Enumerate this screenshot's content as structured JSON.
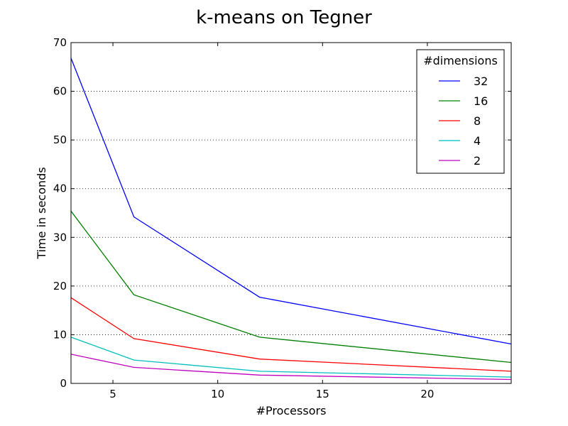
{
  "chart_data": {
    "type": "line",
    "title": "k-means on Tegner",
    "xlabel": "#Processors",
    "ylabel": "Time in seconds",
    "xlim": [
      3,
      24
    ],
    "ylim": [
      0,
      70
    ],
    "xticks": [
      5,
      10,
      15,
      20
    ],
    "yticks": [
      0,
      10,
      20,
      30,
      40,
      50,
      60,
      70
    ],
    "grid": "y-dotted",
    "x": [
      3,
      6,
      12,
      24
    ],
    "legend": {
      "title": "#dimensions",
      "position": "top-right"
    },
    "series": [
      {
        "name": "32",
        "color": "#0000ff",
        "values": [
          66.8,
          34.2,
          17.7,
          8.1
        ]
      },
      {
        "name": "16",
        "color": "#008000",
        "values": [
          35.4,
          18.2,
          9.5,
          4.3
        ]
      },
      {
        "name": "8",
        "color": "#ff0000",
        "values": [
          17.6,
          9.2,
          5.0,
          2.5
        ]
      },
      {
        "name": "4",
        "color": "#00bfbf",
        "values": [
          9.5,
          4.8,
          2.5,
          1.3
        ]
      },
      {
        "name": "2",
        "color": "#bf00bf",
        "values": [
          6.0,
          3.3,
          1.7,
          0.8
        ]
      }
    ]
  }
}
